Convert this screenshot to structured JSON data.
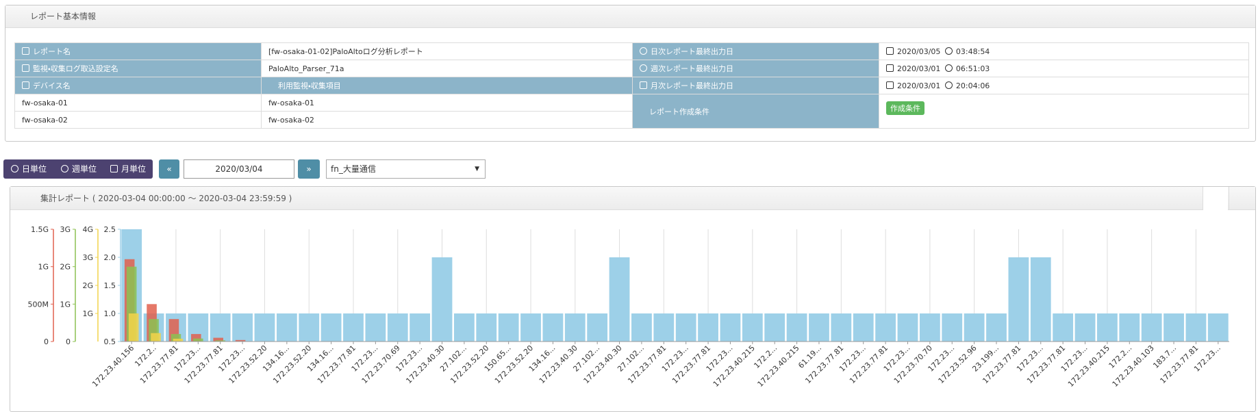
{
  "report_panel": {
    "title": "レポート基本情報",
    "report_name_label": "レポート名",
    "report_name": "[fw-osaka-01-02]PaloAltoログ分析レポート",
    "parser_label": "監視・収集ログ取込設定名",
    "parser": "PaloAlto_Parser_71a",
    "device_label": "デバイス名",
    "devices": [
      "fw-osaka-01",
      "fw-osaka-02"
    ],
    "items_label": "利用監視・収集項目",
    "items": [
      "fw-osaka-01",
      "fw-osaka-02"
    ],
    "daily_label": "日次レポート最終出力日",
    "daily_date": "2020/03/05",
    "daily_time": "03:48:54",
    "weekly_label": "週次レポート最終出力日",
    "weekly_date": "2020/03/01",
    "weekly_time": "06:51:03",
    "monthly_label": "月次レポート最終出力日",
    "monthly_date": "2020/03/01",
    "monthly_time": "20:04:06",
    "condition_label": "レポート作成条件",
    "condition_button": "作成条件"
  },
  "toolbar": {
    "units": [
      "日単位",
      "週単位",
      "月単位"
    ],
    "date": "2020/03/04",
    "selected": "fn_大量通信"
  },
  "chart_panel_title": "集計レポート ( 2020-03-04 00:00:00 ～ 2020-03-04 23:59:59 )",
  "chart_data": {
    "type": "bar",
    "categories": [
      "172.23.40.156",
      "172.2..",
      "172.23.77.81",
      "172.23...",
      "172.23.77.81",
      "172.23...",
      "172.23.52.20",
      "134.16...",
      "172.23.52.20",
      "134.16...",
      "172.23.77.81",
      "172.23...",
      "172.23.70.69",
      "172.23...",
      "172.23.40.30",
      "27.102...",
      "172.23.52.20",
      "150.65...",
      "172.23.52.20",
      "134.16...",
      "172.23.40.30",
      "27.102...",
      "172.23.40.30",
      "27.102...",
      "172.23.77.81",
      "172.23...",
      "172.23.77.81",
      "172.23...",
      "172.23.40.215",
      "172.2...",
      "172.23.40.215",
      "61.19...",
      "172.23.77.81",
      "172.23...",
      "172.23.77.81",
      "172.23...",
      "172.23.70.70",
      "172.23...",
      "172.23.52.96",
      "23.199...",
      "172.23.77.81",
      "172.23...",
      "172.23.77.81",
      "172.23...",
      "172.23.40.215",
      "172.2...",
      "172.23.40.103",
      "183.7...",
      "172.23.77.81",
      "172.23..."
    ],
    "ylim": [
      0.5,
      2.5
    ],
    "yticks": [
      0.5,
      {
        "value": 1,
        "label": "1.0"
      },
      1.5,
      {
        "value": 2,
        "label": "2.0"
      },
      2.5
    ],
    "y2lim": [
      0,
      4000000000
    ],
    "y2ticks": [
      {
        "value": 1000000000,
        "label": "1G"
      },
      {
        "value": 2000000000,
        "label": "2G"
      },
      {
        "value": 3000000000,
        "label": "3G"
      },
      {
        "value": 4000000000,
        "label": "4G"
      }
    ],
    "y3lim": [
      0,
      3000000000
    ],
    "y3ticks": [
      0,
      {
        "value": 1000000000,
        "label": "1G"
      },
      {
        "value": 2000000000,
        "label": "2G"
      },
      {
        "value": 3000000000,
        "label": "3G"
      }
    ],
    "y4lim": [
      0,
      1500000000
    ],
    "y4ticks": [
      0,
      {
        "value": 500000000,
        "label": "500M"
      },
      {
        "value": 1000000000,
        "label": "1G"
      },
      {
        "value": 1500000000,
        "label": "1.5G"
      }
    ],
    "grid": true,
    "series": [
      {
        "color": "#9dd0e8",
        "axis": "y",
        "values": [
          2.5,
          1,
          1,
          1,
          1,
          1,
          1,
          1,
          1,
          1,
          1,
          1,
          1,
          1,
          2,
          1,
          1,
          1,
          1,
          1,
          1,
          1,
          2,
          1,
          1,
          1,
          1,
          1,
          1,
          1,
          1,
          1,
          1,
          1,
          1,
          1,
          1,
          1,
          1,
          1,
          2,
          2,
          1,
          1,
          1,
          1,
          1,
          1,
          1,
          1
        ]
      },
      {
        "color": "#e0604e",
        "axis": "y4",
        "values": [
          1100000000,
          500000000,
          300000000,
          100000000,
          50000000,
          20000000,
          0,
          0,
          0,
          0,
          0,
          0,
          0,
          0,
          0,
          0,
          0,
          0,
          0,
          0,
          0,
          0,
          0,
          0,
          0,
          0,
          0,
          0,
          0,
          0,
          0,
          0,
          0,
          0,
          0,
          0,
          0,
          0,
          0,
          0,
          0,
          0,
          0,
          0,
          0,
          0,
          0,
          0,
          0,
          0
        ]
      },
      {
        "color": "#8cc152",
        "axis": "y3",
        "values": [
          2000000000,
          600000000,
          200000000,
          80000000,
          30000000,
          0,
          0,
          0,
          0,
          0,
          0,
          0,
          0,
          0,
          0,
          0,
          0,
          0,
          0,
          0,
          0,
          0,
          0,
          0,
          0,
          0,
          0,
          0,
          0,
          0,
          0,
          0,
          0,
          0,
          0,
          0,
          0,
          0,
          0,
          0,
          0,
          0,
          0,
          0,
          0,
          0,
          0,
          0,
          0,
          0
        ]
      },
      {
        "color": "#f2d34a",
        "axis": "y2",
        "values": [
          1000000000,
          300000000,
          100000000,
          0,
          0,
          0,
          0,
          0,
          0,
          0,
          0,
          0,
          0,
          0,
          0,
          0,
          0,
          0,
          0,
          0,
          0,
          0,
          0,
          0,
          0,
          0,
          0,
          0,
          0,
          0,
          0,
          0,
          0,
          0,
          0,
          0,
          0,
          0,
          0,
          0,
          0,
          0,
          0,
          0,
          0,
          0,
          0,
          0,
          0,
          0
        ]
      }
    ]
  }
}
